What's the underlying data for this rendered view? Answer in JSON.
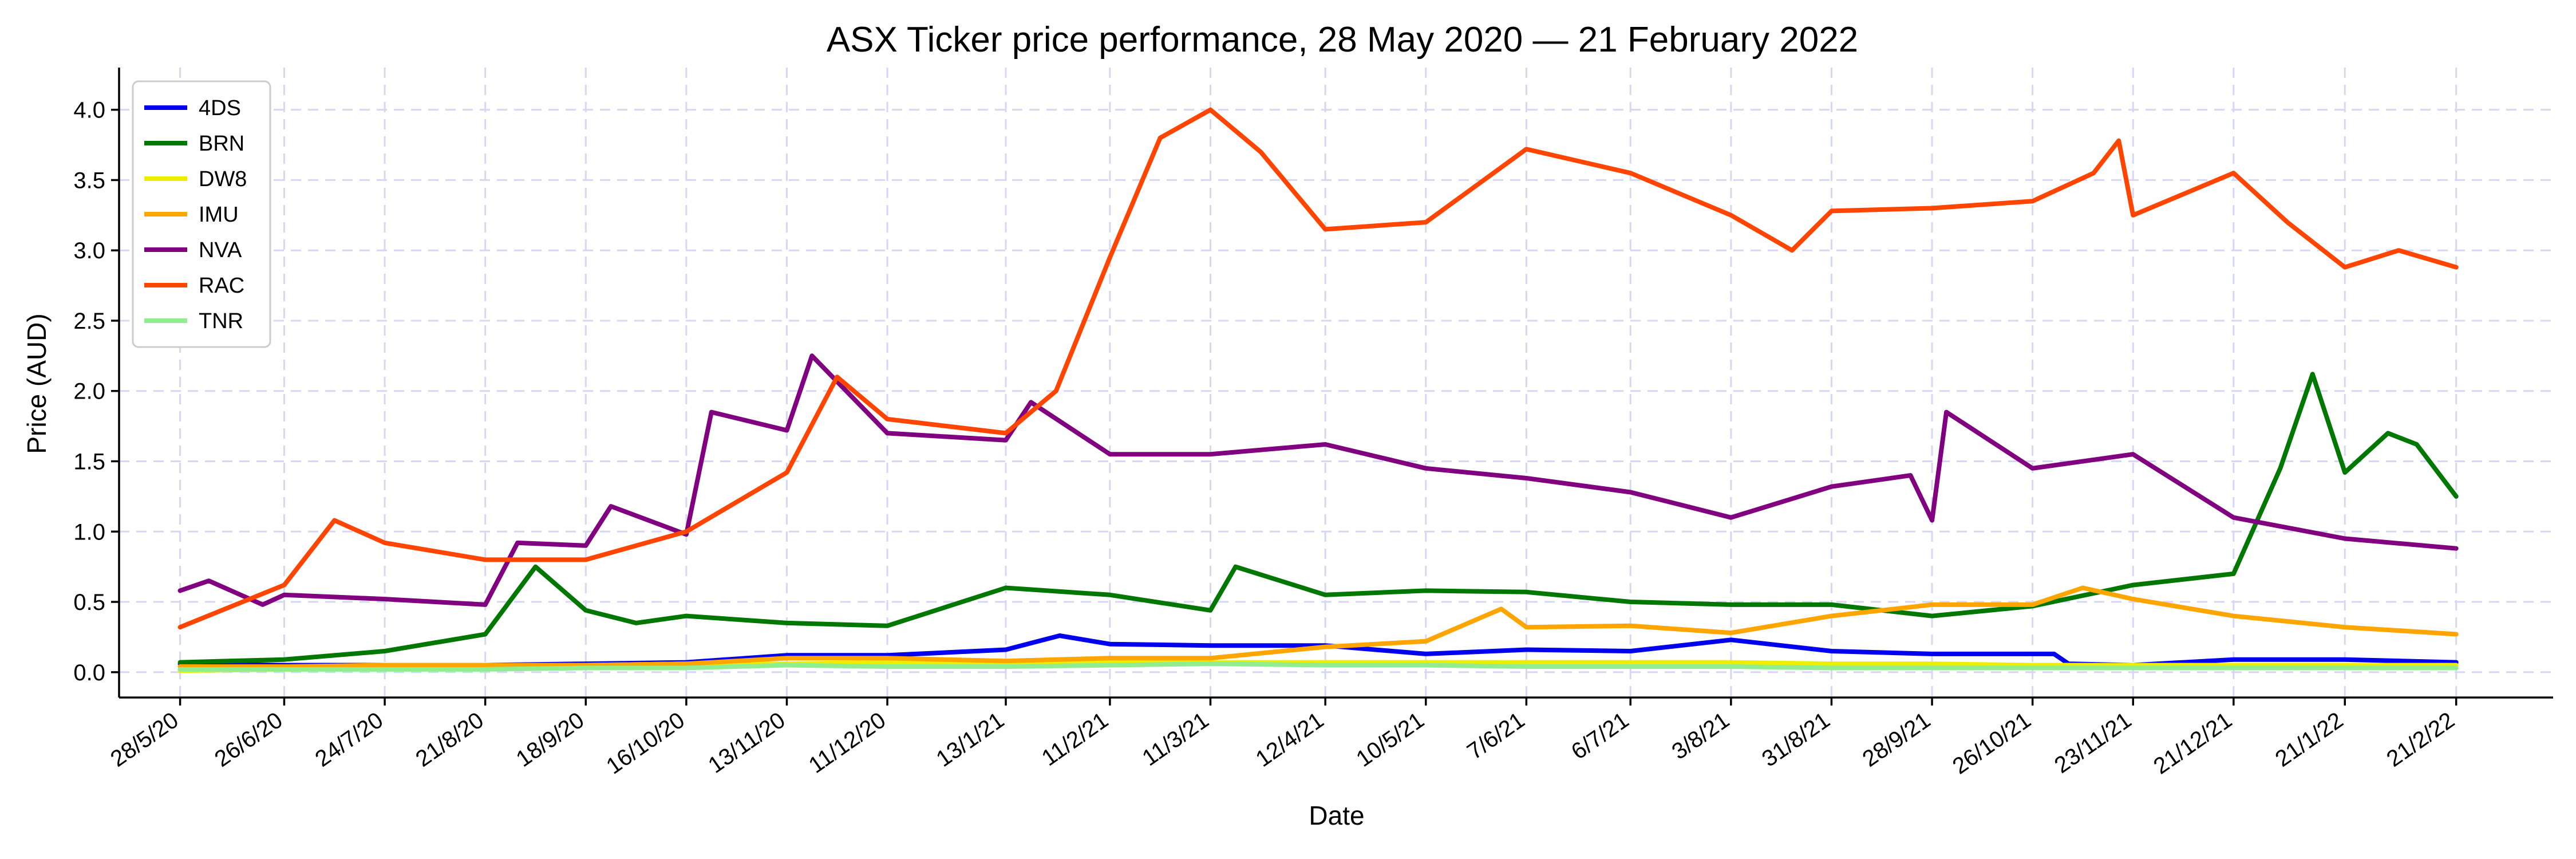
{
  "chart_data": {
    "type": "line",
    "title": "ASX Ticker price performance, 28 May 2020 — 21 February 2022",
    "xlabel": "Date",
    "ylabel": "Price (AUD)",
    "grid": true,
    "legend_position": "top-left",
    "xlim": [
      "2020-05-11",
      "2022-03-20"
    ],
    "ylim": [
      -0.18,
      4.3
    ],
    "y_ticks": [
      0.0,
      0.5,
      1.0,
      1.5,
      2.0,
      2.5,
      3.0,
      3.5,
      4.0
    ],
    "y_tick_labels": [
      "0.0",
      "0.5",
      "1.0",
      "1.5",
      "2.0",
      "2.5",
      "3.0",
      "3.5",
      "4.0"
    ],
    "x_ticks": [
      "2020-05-28",
      "2020-06-26",
      "2020-07-24",
      "2020-08-21",
      "2020-09-18",
      "2020-10-16",
      "2020-11-13",
      "2020-12-11",
      "2021-01-13",
      "2021-02-11",
      "2021-03-11",
      "2021-04-12",
      "2021-05-10",
      "2021-06-07",
      "2021-07-06",
      "2021-08-03",
      "2021-08-31",
      "2021-09-28",
      "2021-10-26",
      "2021-11-23",
      "2021-12-21",
      "2022-01-21",
      "2022-02-21"
    ],
    "x_tick_labels": [
      "28/5/20",
      "26/6/20",
      "24/7/20",
      "21/8/20",
      "18/9/20",
      "16/10/20",
      "13/11/20",
      "11/12/20",
      "13/1/21",
      "11/2/21",
      "11/3/21",
      "12/4/21",
      "10/5/21",
      "7/6/21",
      "6/7/21",
      "3/8/21",
      "31/8/21",
      "28/9/21",
      "26/10/21",
      "23/11/21",
      "21/12/21",
      "21/1/22",
      "21/2/22"
    ],
    "series": [
      {
        "name": "4DS",
        "color": "#0000ee",
        "points": [
          [
            "2020-05-28",
            0.06
          ],
          [
            "2020-06-26",
            0.05
          ],
          [
            "2020-07-24",
            0.05
          ],
          [
            "2020-08-21",
            0.05
          ],
          [
            "2020-09-18",
            0.06
          ],
          [
            "2020-10-16",
            0.07
          ],
          [
            "2020-11-13",
            0.12
          ],
          [
            "2020-12-11",
            0.12
          ],
          [
            "2021-01-13",
            0.16
          ],
          [
            "2021-01-28",
            0.26
          ],
          [
            "2021-02-11",
            0.2
          ],
          [
            "2021-03-11",
            0.19
          ],
          [
            "2021-04-12",
            0.19
          ],
          [
            "2021-05-10",
            0.13
          ],
          [
            "2021-06-07",
            0.16
          ],
          [
            "2021-07-06",
            0.15
          ],
          [
            "2021-08-03",
            0.23
          ],
          [
            "2021-08-31",
            0.15
          ],
          [
            "2021-09-28",
            0.13
          ],
          [
            "2021-10-26",
            0.13
          ],
          [
            "2021-11-01",
            0.13
          ],
          [
            "2021-11-05",
            0.06
          ],
          [
            "2021-11-23",
            0.05
          ],
          [
            "2021-12-21",
            0.09
          ],
          [
            "2022-01-21",
            0.09
          ],
          [
            "2022-02-21",
            0.07
          ]
        ]
      },
      {
        "name": "BRN",
        "color": "#007700",
        "points": [
          [
            "2020-05-28",
            0.07
          ],
          [
            "2020-06-26",
            0.09
          ],
          [
            "2020-07-24",
            0.15
          ],
          [
            "2020-08-21",
            0.27
          ],
          [
            "2020-09-04",
            0.75
          ],
          [
            "2020-09-18",
            0.44
          ],
          [
            "2020-10-02",
            0.35
          ],
          [
            "2020-10-16",
            0.4
          ],
          [
            "2020-11-13",
            0.35
          ],
          [
            "2020-12-11",
            0.33
          ],
          [
            "2021-01-13",
            0.6
          ],
          [
            "2021-02-11",
            0.55
          ],
          [
            "2021-03-11",
            0.44
          ],
          [
            "2021-03-18",
            0.75
          ],
          [
            "2021-04-12",
            0.55
          ],
          [
            "2021-05-10",
            0.58
          ],
          [
            "2021-06-07",
            0.57
          ],
          [
            "2021-07-06",
            0.5
          ],
          [
            "2021-08-03",
            0.48
          ],
          [
            "2021-08-31",
            0.48
          ],
          [
            "2021-09-28",
            0.4
          ],
          [
            "2021-10-26",
            0.47
          ],
          [
            "2021-11-23",
            0.62
          ],
          [
            "2021-12-21",
            0.7
          ],
          [
            "2022-01-03",
            1.45
          ],
          [
            "2022-01-12",
            2.12
          ],
          [
            "2022-01-21",
            1.42
          ],
          [
            "2022-02-02",
            1.7
          ],
          [
            "2022-02-10",
            1.62
          ],
          [
            "2022-02-21",
            1.25
          ]
        ]
      },
      {
        "name": "DW8",
        "color": "#eeee00",
        "points": [
          [
            "2020-05-28",
            0.01
          ],
          [
            "2020-06-26",
            0.02
          ],
          [
            "2020-07-24",
            0.03
          ],
          [
            "2020-08-21",
            0.04
          ],
          [
            "2020-09-18",
            0.05
          ],
          [
            "2020-10-16",
            0.06
          ],
          [
            "2020-11-13",
            0.06
          ],
          [
            "2020-12-11",
            0.07
          ],
          [
            "2021-01-13",
            0.07
          ],
          [
            "2021-02-11",
            0.07
          ],
          [
            "2021-03-11",
            0.07
          ],
          [
            "2021-04-12",
            0.07
          ],
          [
            "2021-05-10",
            0.07
          ],
          [
            "2021-06-07",
            0.07
          ],
          [
            "2021-07-06",
            0.07
          ],
          [
            "2021-08-03",
            0.07
          ],
          [
            "2021-08-31",
            0.06
          ],
          [
            "2021-09-28",
            0.06
          ],
          [
            "2021-10-26",
            0.05
          ],
          [
            "2021-11-23",
            0.05
          ],
          [
            "2021-12-21",
            0.05
          ],
          [
            "2022-01-21",
            0.05
          ],
          [
            "2022-02-21",
            0.05
          ]
        ]
      },
      {
        "name": "IMU",
        "color": "#ffa500",
        "points": [
          [
            "2020-05-28",
            0.04
          ],
          [
            "2020-06-26",
            0.04
          ],
          [
            "2020-07-24",
            0.05
          ],
          [
            "2020-08-21",
            0.05
          ],
          [
            "2020-09-18",
            0.05
          ],
          [
            "2020-10-16",
            0.06
          ],
          [
            "2020-11-13",
            0.1
          ],
          [
            "2020-12-11",
            0.1
          ],
          [
            "2021-01-13",
            0.08
          ],
          [
            "2021-02-11",
            0.1
          ],
          [
            "2021-03-11",
            0.1
          ],
          [
            "2021-04-12",
            0.18
          ],
          [
            "2021-05-10",
            0.22
          ],
          [
            "2021-05-31",
            0.45
          ],
          [
            "2021-06-07",
            0.32
          ],
          [
            "2021-07-06",
            0.33
          ],
          [
            "2021-08-03",
            0.28
          ],
          [
            "2021-08-31",
            0.4
          ],
          [
            "2021-09-28",
            0.48
          ],
          [
            "2021-10-26",
            0.48
          ],
          [
            "2021-11-09",
            0.6
          ],
          [
            "2021-11-23",
            0.52
          ],
          [
            "2021-12-21",
            0.4
          ],
          [
            "2022-01-21",
            0.32
          ],
          [
            "2022-02-21",
            0.27
          ]
        ]
      },
      {
        "name": "NVA",
        "color": "#800080",
        "points": [
          [
            "2020-05-28",
            0.58
          ],
          [
            "2020-06-05",
            0.65
          ],
          [
            "2020-06-20",
            0.48
          ],
          [
            "2020-06-26",
            0.55
          ],
          [
            "2020-07-24",
            0.52
          ],
          [
            "2020-08-21",
            0.48
          ],
          [
            "2020-08-30",
            0.92
          ],
          [
            "2020-09-18",
            0.9
          ],
          [
            "2020-09-25",
            1.18
          ],
          [
            "2020-10-16",
            0.98
          ],
          [
            "2020-10-23",
            1.85
          ],
          [
            "2020-11-13",
            1.72
          ],
          [
            "2020-11-20",
            2.25
          ],
          [
            "2020-12-11",
            1.7
          ],
          [
            "2021-01-13",
            1.65
          ],
          [
            "2021-01-20",
            1.92
          ],
          [
            "2021-02-11",
            1.55
          ],
          [
            "2021-03-11",
            1.55
          ],
          [
            "2021-04-12",
            1.62
          ],
          [
            "2021-05-10",
            1.45
          ],
          [
            "2021-06-07",
            1.38
          ],
          [
            "2021-07-06",
            1.28
          ],
          [
            "2021-08-03",
            1.1
          ],
          [
            "2021-08-31",
            1.32
          ],
          [
            "2021-09-22",
            1.4
          ],
          [
            "2021-09-28",
            1.08
          ],
          [
            "2021-10-02",
            1.85
          ],
          [
            "2021-10-26",
            1.45
          ],
          [
            "2021-11-23",
            1.55
          ],
          [
            "2021-12-21",
            1.1
          ],
          [
            "2022-01-21",
            0.95
          ],
          [
            "2022-02-21",
            0.88
          ]
        ]
      },
      {
        "name": "RAC",
        "color": "#ff4500",
        "points": [
          [
            "2020-05-28",
            0.32
          ],
          [
            "2020-06-26",
            0.62
          ],
          [
            "2020-07-10",
            1.08
          ],
          [
            "2020-07-24",
            0.92
          ],
          [
            "2020-08-21",
            0.8
          ],
          [
            "2020-09-18",
            0.8
          ],
          [
            "2020-10-16",
            1.0
          ],
          [
            "2020-11-13",
            1.42
          ],
          [
            "2020-11-27",
            2.1
          ],
          [
            "2020-12-11",
            1.8
          ],
          [
            "2021-01-13",
            1.7
          ],
          [
            "2021-01-27",
            2.0
          ],
          [
            "2021-02-11",
            2.95
          ],
          [
            "2021-02-25",
            3.8
          ],
          [
            "2021-03-11",
            4.0
          ],
          [
            "2021-03-25",
            3.7
          ],
          [
            "2021-04-12",
            3.15
          ],
          [
            "2021-05-10",
            3.2
          ],
          [
            "2021-06-07",
            3.72
          ],
          [
            "2021-07-06",
            3.55
          ],
          [
            "2021-08-03",
            3.25
          ],
          [
            "2021-08-20",
            3.0
          ],
          [
            "2021-08-31",
            3.28
          ],
          [
            "2021-09-28",
            3.3
          ],
          [
            "2021-10-26",
            3.35
          ],
          [
            "2021-11-12",
            3.55
          ],
          [
            "2021-11-19",
            3.78
          ],
          [
            "2021-11-23",
            3.25
          ],
          [
            "2021-12-21",
            3.55
          ],
          [
            "2022-01-05",
            3.2
          ],
          [
            "2022-01-21",
            2.88
          ],
          [
            "2022-02-05",
            3.0
          ],
          [
            "2022-02-21",
            2.88
          ]
        ]
      },
      {
        "name": "TNR",
        "color": "#90ee90",
        "points": [
          [
            "2020-05-28",
            0.02
          ],
          [
            "2020-06-26",
            0.02
          ],
          [
            "2020-07-24",
            0.02
          ],
          [
            "2020-08-21",
            0.02
          ],
          [
            "2020-09-18",
            0.03
          ],
          [
            "2020-10-16",
            0.03
          ],
          [
            "2020-11-13",
            0.05
          ],
          [
            "2020-12-11",
            0.04
          ],
          [
            "2021-01-13",
            0.04
          ],
          [
            "2021-02-11",
            0.05
          ],
          [
            "2021-03-11",
            0.06
          ],
          [
            "2021-04-12",
            0.05
          ],
          [
            "2021-05-10",
            0.05
          ],
          [
            "2021-06-07",
            0.04
          ],
          [
            "2021-07-06",
            0.04
          ],
          [
            "2021-08-03",
            0.04
          ],
          [
            "2021-08-31",
            0.03
          ],
          [
            "2021-09-28",
            0.03
          ],
          [
            "2021-10-26",
            0.03
          ],
          [
            "2021-11-23",
            0.03
          ],
          [
            "2021-12-21",
            0.03
          ],
          [
            "2022-01-21",
            0.03
          ],
          [
            "2022-02-21",
            0.03
          ]
        ]
      }
    ]
  }
}
